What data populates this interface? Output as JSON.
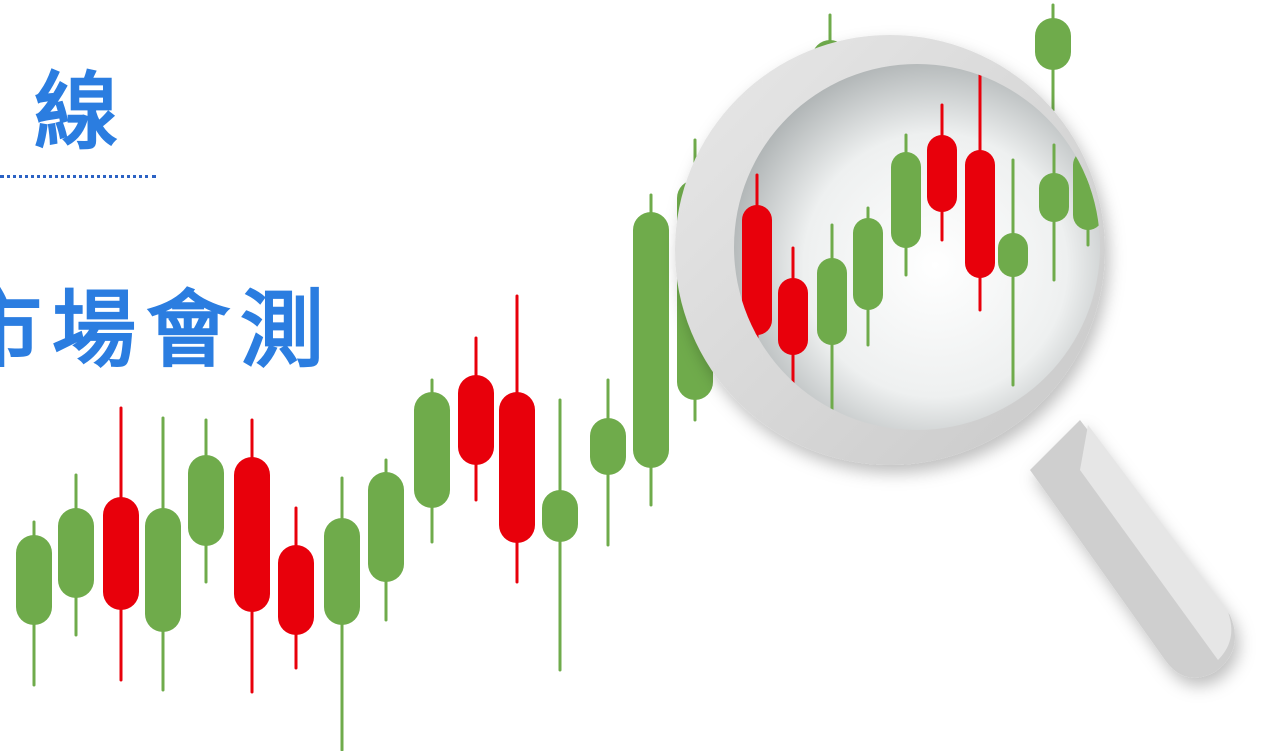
{
  "header": {
    "line1": "線",
    "line2": "市場會測"
  }
}
